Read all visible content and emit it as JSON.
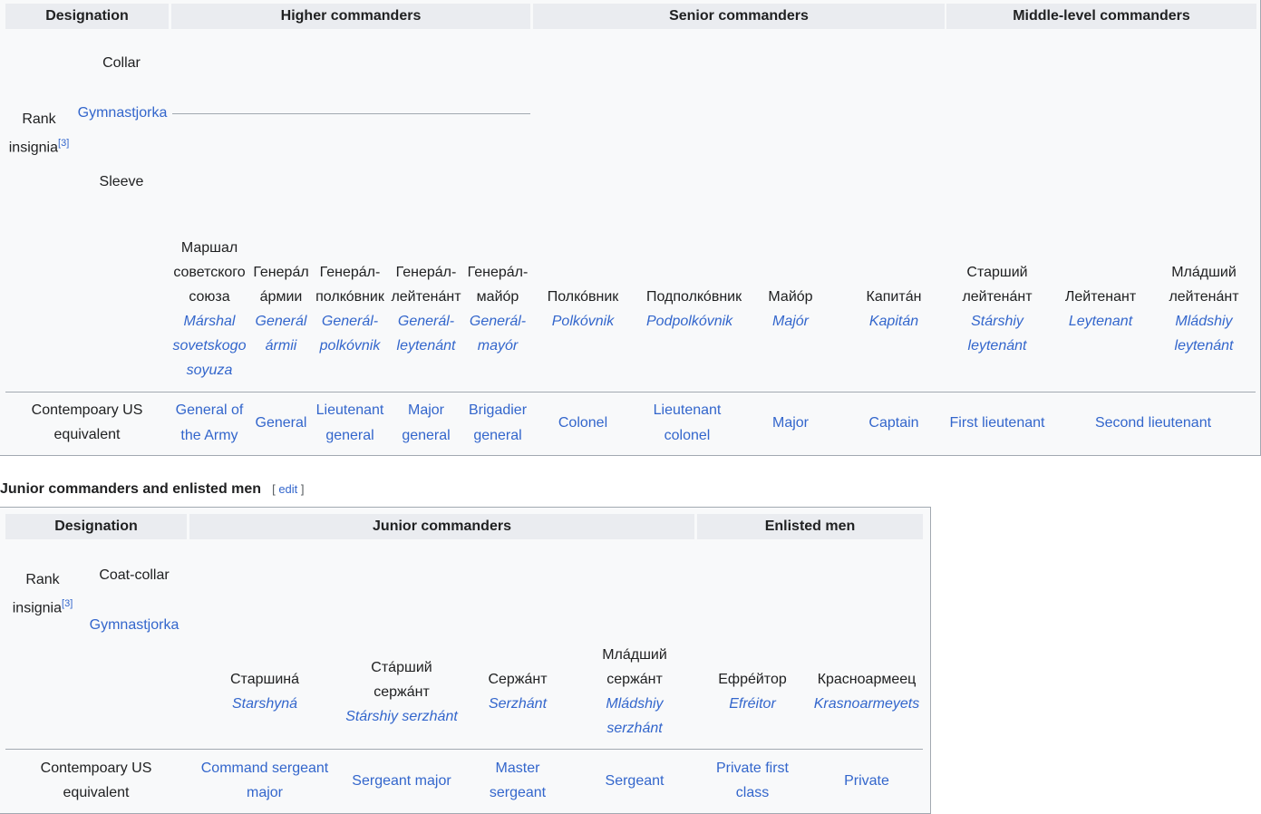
{
  "table1": {
    "headers": {
      "designation": "Designation",
      "higher": "Higher commanders",
      "senior": "Senior commanders",
      "middle": "Middle-level commanders"
    },
    "rank_insignia": "Rank insignia",
    "footnote": "[3]",
    "collar_label": "Collar",
    "gym_label": "Gymnastjorka",
    "sleeve_label": "Sleeve",
    "us_label": "Contempoary US equivalent",
    "ranks": [
      {
        "ru1": "Маршал",
        "ru2": "советского",
        "ru3": "союза",
        "tr1": "Márshal",
        "tr2": "sovetskogo",
        "tr3": "soyuza",
        "us1": "General of",
        "us2": "the Army"
      },
      {
        "ru1": "Генерáл",
        "ru2": "áрмии",
        "tr1": "Generál",
        "tr2": "ármii",
        "us1": "General"
      },
      {
        "ru1": "Генерáл-",
        "ru2": "полкóвник",
        "tr1": "Generál-",
        "tr2": "polkóvnik",
        "us1": "Lieutenant",
        "us2": "general"
      },
      {
        "ru1": "Генерáл-",
        "ru2": "лейтенáнт",
        "tr1": "Generál-",
        "tr2": "leytenánt",
        "us1": "Major",
        "us2": "general"
      },
      {
        "ru1": "Генерáл-",
        "ru2": "майóр",
        "tr1": "Generál-",
        "tr2": "mayór",
        "us1": "Brigadier",
        "us2": "general"
      },
      {
        "ru1": "Полкóвник",
        "tr1": "Polkóvnik",
        "us1": "Colonel"
      },
      {
        "ru1": "Подполкóвник",
        "tr1": "Podpolkóvnik",
        "us1": "Lieutenant",
        "us2": "colonel"
      },
      {
        "ru1": "Майóр",
        "tr1": "Majór",
        "us1": "Major"
      },
      {
        "ru1": "Капитáн",
        "tr1": "Kapitán",
        "us1": "Captain"
      },
      {
        "ru1": "Старший",
        "ru2": "лейтенáнт",
        "tr1": "Stárshiy",
        "tr2": "leytenánt",
        "us1": "First lieutenant"
      },
      {
        "ru1": "Лейтенант",
        "tr1": "Leytenant",
        "us1": "Second lieutenant"
      },
      {
        "ru1": "Млáдший",
        "ru2": "лейтенáнт",
        "tr1": "Mládshiy",
        "tr2": "leytenánt"
      }
    ]
  },
  "section": {
    "title": "Junior commanders and enlisted men",
    "edit_open": "[",
    "edit": "edit",
    "edit_close": "]"
  },
  "table2": {
    "headers": {
      "designation": "Designation",
      "junior": "Junior commanders",
      "enlisted": "Enlisted men"
    },
    "rank_insignia": "Rank insignia",
    "footnote": "[3]",
    "coat_label": "Coat-collar",
    "gym_label": "Gymnastjorka",
    "us_label": "Contempoary US equivalent",
    "ranks": [
      {
        "ru1": "Старшинá",
        "tr1": "Starshyná",
        "us1": "Command sergeant",
        "us2": "major"
      },
      {
        "ru1": "Стáрший",
        "ru2": "сержáнт",
        "tr1": "Stárshiy serzhánt",
        "us1": "Sergeant major"
      },
      {
        "ru1": "Сержáнт",
        "tr1": "Serzhánt",
        "us1": "Master",
        "us2": "sergeant"
      },
      {
        "ru1": "Млáдший",
        "ru2": "сержáнт",
        "tr1": "Mládshiy",
        "tr2": "serzhánt",
        "us1": "Sergeant"
      },
      {
        "ru1": "Ефрéйтор",
        "tr1": "Efréitor",
        "us1": "Private first",
        "us2": "class"
      },
      {
        "ru1": "Красноармеец",
        "tr1": "Krasnoarmeyets",
        "us1": "Private"
      }
    ]
  },
  "colors": {
    "red": "#d71920",
    "crimson": "#c8174f",
    "gold": "#e3b23c",
    "header": "#eaecf0",
    "link": "#3366cc"
  }
}
